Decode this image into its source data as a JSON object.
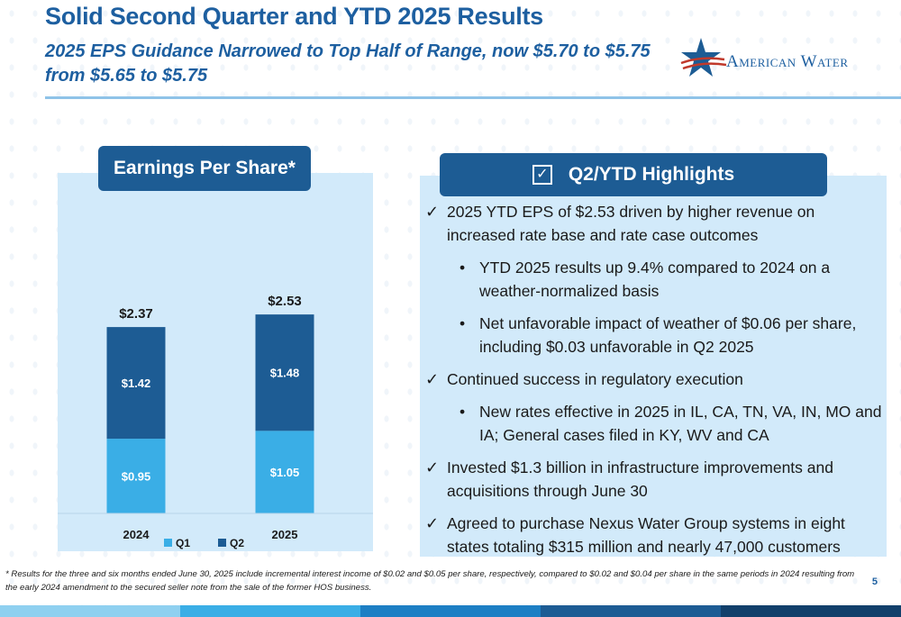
{
  "title": "Solid Second Quarter and YTD 2025 Results",
  "subtitle": "2025 EPS Guidance Narrowed to Top Half of Range, now $5.70 to $5.75 from $5.65 to $5.75",
  "logo": {
    "text": "American Water",
    "icon": "star-icon"
  },
  "left_panel": {
    "header": "Earnings Per Share*"
  },
  "right_panel": {
    "header": "Q2/YTD Highlights",
    "items": [
      {
        "type": "check",
        "text": "2025 YTD EPS of $2.53 driven by higher revenue on increased rate base and rate case outcomes"
      },
      {
        "type": "bullet",
        "text": "YTD 2025 results up 9.4% compared to 2024 on a weather-normalized basis"
      },
      {
        "type": "bullet",
        "text": "Net unfavorable impact of weather of $0.06 per share, including $0.03 unfavorable in Q2 2025"
      },
      {
        "type": "check",
        "text": "Continued success in regulatory execution"
      },
      {
        "type": "bullet",
        "text": "New rates effective in 2025 in IL, CA, TN, VA, IN, MO and IA; General cases filed in KY, WV and CA"
      },
      {
        "type": "check",
        "text": "Invested $1.3 billion in infrastructure improvements and acquisitions through June 30"
      },
      {
        "type": "check",
        "text": "Agreed to purchase Nexus Water Group systems in eight states totaling $315 million and nearly 47,000 customers"
      }
    ]
  },
  "footnote": "* Results for the three and six months ended June 30, 2025 include incremental interest income of $0.02 and $0.05 per share, respectively, compared to $0.02 and $0.04 per share in the same periods in 2024 resulting from the early 2024 amendment to the secured seller note from the sale of the former HOS business.",
  "page_number": "5",
  "colors": {
    "q1": "#3aaee6",
    "q2": "#1d5c94",
    "brand": "#1d5fa0",
    "panel": "#d2eafa"
  },
  "chart_data": {
    "type": "bar",
    "stacked": true,
    "categories": [
      "2024",
      "2025"
    ],
    "series": [
      {
        "name": "Q1",
        "values": [
          0.95,
          1.05
        ],
        "labels": [
          "$0.95",
          "$1.05"
        ]
      },
      {
        "name": "Q2",
        "values": [
          1.42,
          1.48
        ],
        "labels": [
          "$1.42",
          "$1.48"
        ]
      }
    ],
    "totals": [
      "$2.37",
      "$2.53"
    ],
    "legend_position": "bottom"
  }
}
